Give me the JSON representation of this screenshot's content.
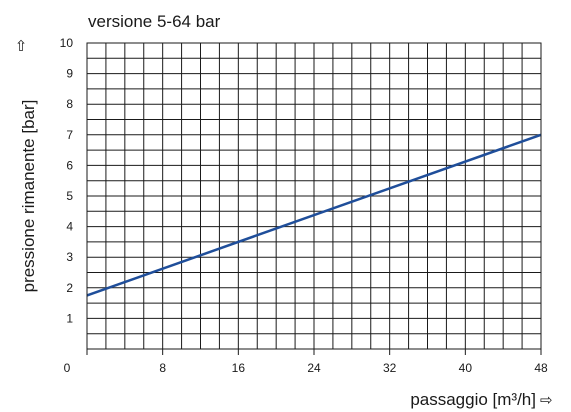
{
  "chart_data": {
    "type": "line",
    "title": "versione 5-64 bar",
    "xlabel": "passaggio [m³/h]",
    "ylabel": "pressione rimanente [bar]",
    "x_arrow": "⇨",
    "y_arrow": "⇧",
    "xlim": [
      0,
      48
    ],
    "ylim": [
      0,
      10
    ],
    "x_ticks": [
      0,
      8,
      16,
      24,
      32,
      40,
      48
    ],
    "y_ticks": [
      1,
      2,
      3,
      4,
      5,
      6,
      7,
      8,
      9,
      10
    ],
    "grid": true,
    "series": [
      {
        "color": "#1f4e9a",
        "x": [
          0,
          48
        ],
        "y": [
          1.75,
          7.0
        ]
      }
    ]
  }
}
